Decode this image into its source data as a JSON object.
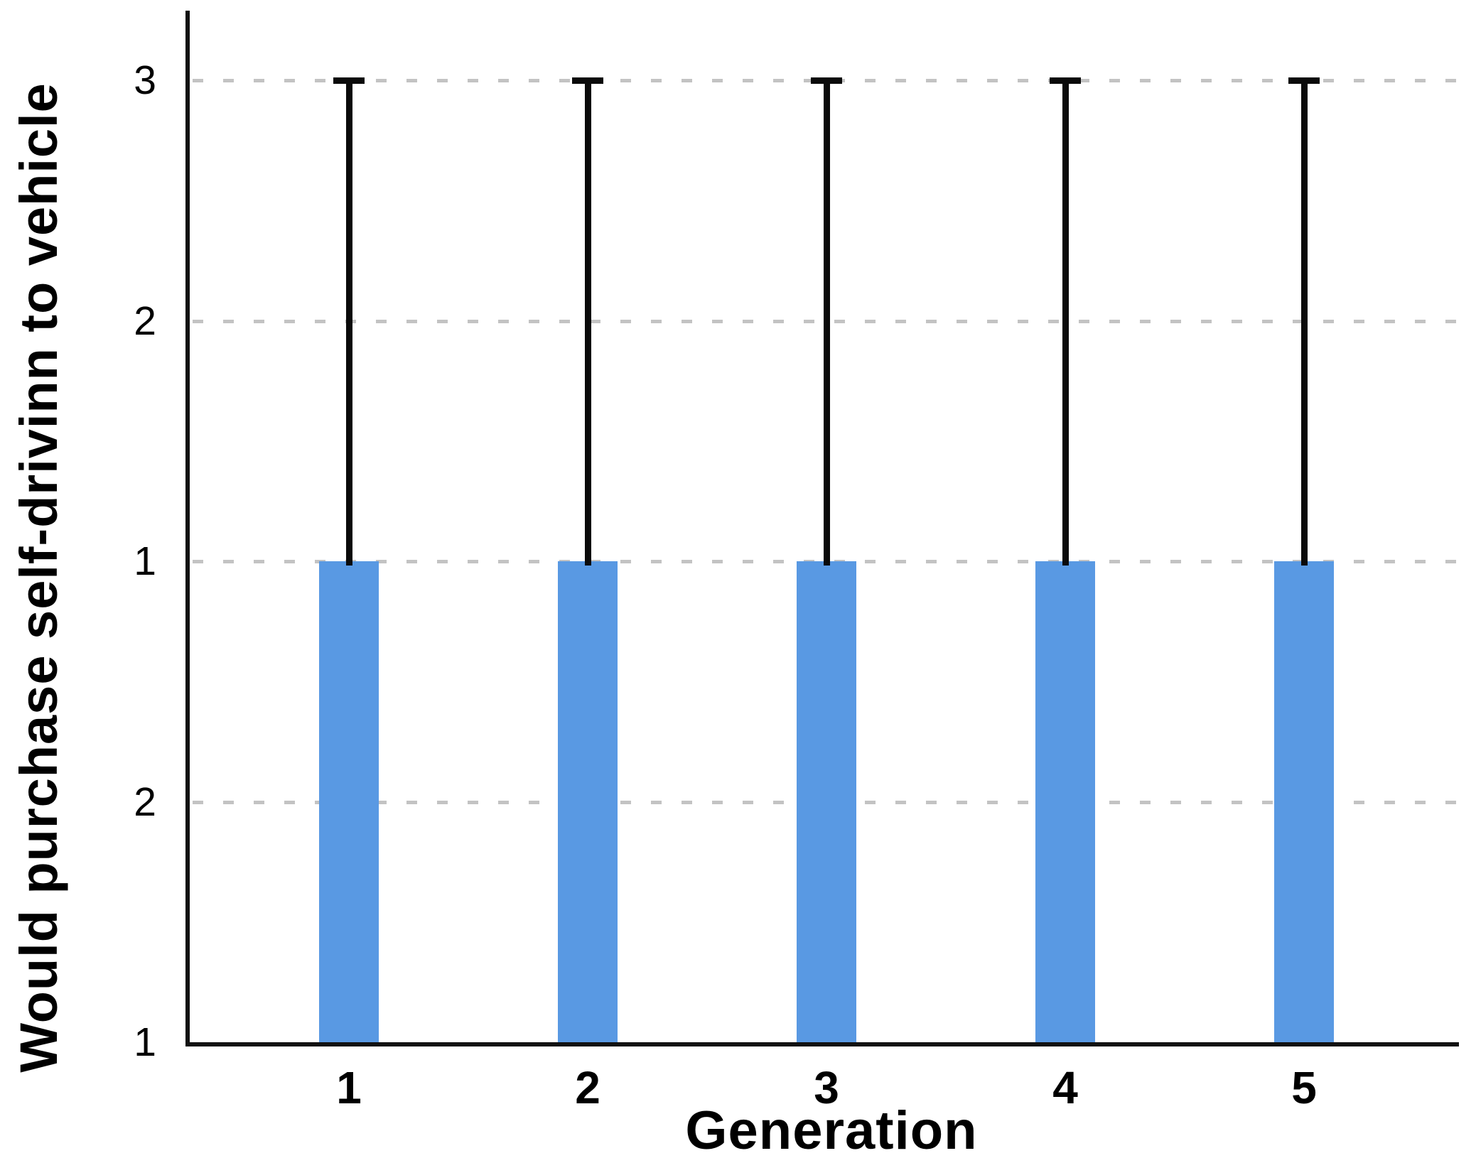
{
  "chart_data": {
    "type": "bar",
    "title": "",
    "xlabel": "Generation",
    "ylabel": "Would purchase self-drivinn to vehicle",
    "categories": [
      "1",
      "2",
      "3",
      "4",
      "5"
    ],
    "values": [
      2,
      2,
      2,
      2,
      2
    ],
    "error_plus": [
      2,
      2,
      2,
      2,
      2
    ],
    "value_units": "y-axis tick steps above the baseline; bar tops align with the gridline labeled 1, error-bar tops align with the gridline labeled 3",
    "y_ticks": [
      {
        "step": 0,
        "label": "1"
      },
      {
        "step": 1,
        "label": "2"
      },
      {
        "step": 2,
        "label": "1"
      },
      {
        "step": 3,
        "label": "2"
      },
      {
        "step": 4,
        "label": "3"
      }
    ],
    "y_gridline_steps": [
      1,
      2,
      3,
      4
    ],
    "ylim_steps": [
      0,
      4.15
    ],
    "grid": "horizontal dashed",
    "legend": "none",
    "colors": {
      "bar": "#5999E3",
      "error_bar": "#0a0a0a",
      "gridline": "#c3c3c3",
      "axis": "#111111",
      "text": "#000000"
    }
  }
}
